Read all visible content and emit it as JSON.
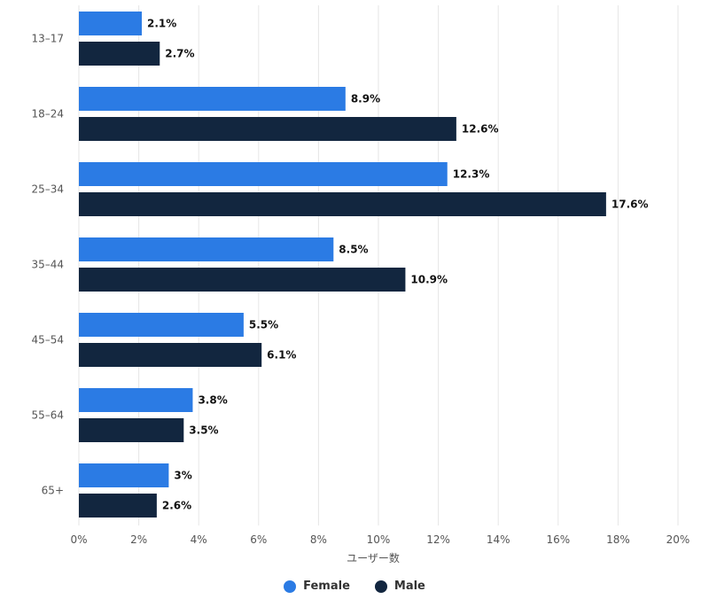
{
  "chart_data": {
    "type": "bar",
    "orientation": "horizontal",
    "categories": [
      "13–17",
      "18–24",
      "25–34",
      "35–44",
      "45–54",
      "55–64",
      "65+"
    ],
    "series": [
      {
        "name": "Female",
        "color": "#2b7be4",
        "values": [
          2.1,
          8.9,
          12.3,
          8.5,
          5.5,
          3.8,
          3
        ],
        "labels": [
          "2.1%",
          "8.9%",
          "12.3%",
          "8.5%",
          "5.5%",
          "3.8%",
          "3%"
        ]
      },
      {
        "name": "Male",
        "color": "#12263f",
        "values": [
          2.7,
          12.6,
          17.6,
          10.9,
          6.1,
          3.5,
          2.6
        ],
        "labels": [
          "2.7%",
          "12.6%",
          "17.6%",
          "10.9%",
          "6.1%",
          "3.5%",
          "2.6%"
        ]
      }
    ],
    "xlim": [
      0,
      20
    ],
    "xticks": [
      0,
      2,
      4,
      6,
      8,
      10,
      12,
      14,
      16,
      18,
      20
    ],
    "xtick_labels": [
      "0%",
      "2%",
      "4%",
      "6%",
      "8%",
      "10%",
      "12%",
      "14%",
      "16%",
      "18%",
      "20%"
    ],
    "xlabel": "ユーザー数",
    "ylabel": "",
    "grid": true,
    "legend_position": "bottom-center"
  }
}
